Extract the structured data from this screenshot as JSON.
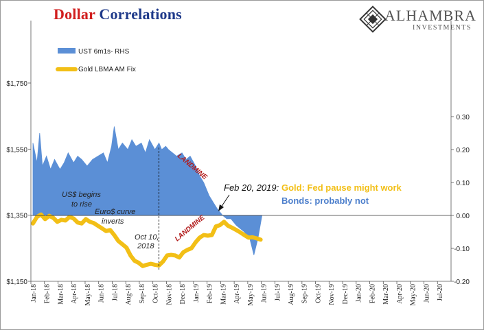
{
  "title": {
    "part1": "Dollar",
    "part2": "Correlations"
  },
  "logo": {
    "name": "ALHAMBRA",
    "sub": "INVESTMENTS"
  },
  "chart_data": {
    "type": "area",
    "title": "Dollar Correlations",
    "legend_position": "top-left",
    "grid": false,
    "x_ticks": [
      "Jan-18",
      "Feb-18",
      "Mar-18",
      "Apr-18",
      "May-18",
      "Jun-18",
      "Jul-18",
      "Aug-18",
      "Sep-18",
      "Oct-18",
      "Nov-18",
      "Dec-18",
      "Jan-19",
      "Feb-19",
      "Mar-19",
      "Apr-19",
      "May-19",
      "Jun-19",
      "Jul-19",
      "Aug-19",
      "Sep-19",
      "Oct-19",
      "Nov-19",
      "Dec-19",
      "Jan-20",
      "Feb-20",
      "Mar-20",
      "Apr-20",
      "May-20",
      "Jun-20",
      "Jul-20"
    ],
    "y_left": {
      "ticks": [
        "$1,150",
        "$1,350",
        "$1,550",
        "$1,750"
      ],
      "values": [
        1150,
        1350,
        1550,
        1750
      ],
      "range": [
        1150,
        1750
      ]
    },
    "y_right": {
      "ticks": [
        "0.30",
        "0.20",
        "0.10",
        "0.00",
        "-0.10",
        "-0.20"
      ],
      "values": [
        0.3,
        0.2,
        0.1,
        0.0,
        -0.1,
        -0.2
      ],
      "range": [
        -0.2,
        0.3
      ]
    },
    "series": [
      {
        "name": "UST 6m1s- RHS",
        "axis": "right",
        "type": "area",
        "color": "#5b8fd6",
        "x": [
          0,
          0.3,
          0.5,
          0.7,
          1,
          1.3,
          1.6,
          2,
          2.3,
          2.6,
          3,
          3.3,
          3.6,
          4,
          4.4,
          4.8,
          5.2,
          5.5,
          5.8,
          6,
          6.3,
          6.6,
          7,
          7.3,
          7.6,
          8,
          8.3,
          8.6,
          9,
          9.3,
          9.5,
          9.8,
          10,
          10.3,
          10.6,
          11,
          11.3,
          11.6,
          12,
          12.3,
          12.6,
          13,
          13.3,
          13.6,
          14,
          14.3,
          14.6,
          15,
          15.3,
          15.6,
          16,
          16.3,
          16.6,
          16.9
        ],
        "values": [
          0.22,
          0.16,
          0.25,
          0.15,
          0.18,
          0.14,
          0.17,
          0.14,
          0.16,
          0.19,
          0.16,
          0.18,
          0.17,
          0.15,
          0.17,
          0.18,
          0.19,
          0.16,
          0.21,
          0.27,
          0.2,
          0.22,
          0.2,
          0.23,
          0.21,
          0.22,
          0.19,
          0.23,
          0.2,
          0.22,
          0.2,
          0.21,
          0.2,
          0.19,
          0.18,
          0.19,
          0.17,
          0.18,
          0.15,
          0.12,
          0.1,
          0.06,
          0.04,
          0.02,
          0.0,
          -0.01,
          -0.01,
          -0.03,
          -0.04,
          -0.05,
          -0.07,
          -0.12,
          -0.07,
          0.0
        ]
      },
      {
        "name": "Gold LBMA AM Fix",
        "axis": "left",
        "type": "line",
        "color": "#f2bf16",
        "x": [
          0,
          0.3,
          0.6,
          0.9,
          1.2,
          1.5,
          1.8,
          2.1,
          2.4,
          2.7,
          3,
          3.3,
          3.6,
          3.9,
          4.2,
          4.5,
          4.8,
          5.1,
          5.4,
          5.7,
          6,
          6.3,
          6.6,
          6.9,
          7.2,
          7.5,
          7.8,
          8.1,
          8.4,
          8.7,
          9,
          9.3,
          9.6,
          9.9,
          10.2,
          10.5,
          10.8,
          11.1,
          11.4,
          11.7,
          12,
          12.3,
          12.6,
          12.9,
          13.2,
          13.5,
          13.8,
          14.1,
          14.4,
          14.7,
          15,
          15.3,
          15.6,
          15.9,
          16.2,
          16.5,
          16.8
        ],
        "values": [
          1325,
          1345,
          1352,
          1338,
          1348,
          1342,
          1330,
          1336,
          1334,
          1345,
          1340,
          1328,
          1325,
          1338,
          1330,
          1326,
          1318,
          1310,
          1302,
          1305,
          1290,
          1272,
          1262,
          1252,
          1228,
          1212,
          1206,
          1196,
          1200,
          1203,
          1200,
          1198,
          1210,
          1228,
          1230,
          1228,
          1222,
          1238,
          1245,
          1250,
          1268,
          1282,
          1290,
          1288,
          1290,
          1316,
          1320,
          1330,
          1318,
          1312,
          1305,
          1298,
          1290,
          1282,
          1283,
          1280,
          1276
        ]
      }
    ],
    "annotations": {
      "us_begins": [
        "US$ begins",
        "to rise"
      ],
      "euro_curve": [
        "Euro$ curve",
        "inverts"
      ],
      "oct10": [
        "Oct 10,",
        "2018"
      ],
      "landmine": "LANDMINE",
      "feb20": "Feb 20, 2019:",
      "gold_note": "Gold: Fed pause might work",
      "bonds_note": "Bonds: probably not"
    }
  }
}
